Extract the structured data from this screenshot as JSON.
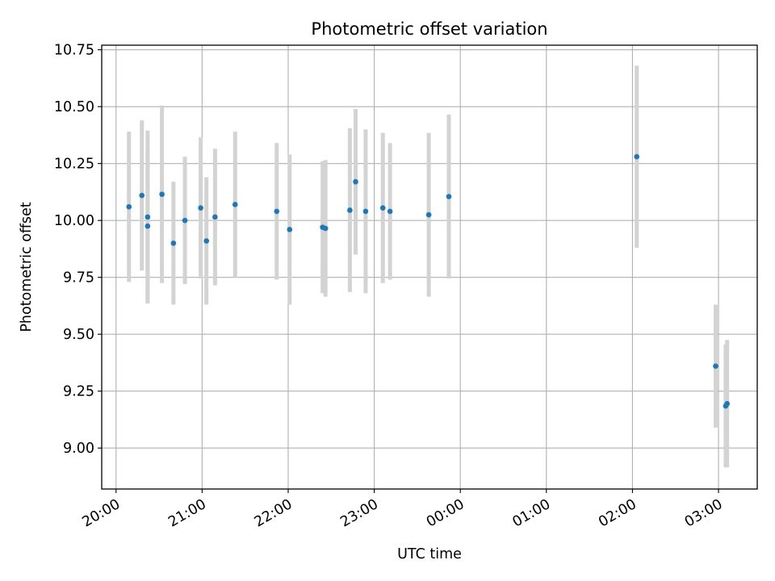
{
  "chart_data": {
    "type": "scatter",
    "title": "Photometric offset variation",
    "xlabel": "UTC time",
    "ylabel": "Photometric offset",
    "x_axis": "time",
    "xlim": [
      "2000-01-01 19:50",
      "2000-01-02 03:27"
    ],
    "ylim": [
      8.82,
      10.77
    ],
    "xticks": [
      {
        "time": "2000-01-01 20:00",
        "label": "20:00"
      },
      {
        "time": "2000-01-01 21:00",
        "label": "21:00"
      },
      {
        "time": "2000-01-01 22:00",
        "label": "22:00"
      },
      {
        "time": "2000-01-01 23:00",
        "label": "23:00"
      },
      {
        "time": "2000-01-02 00:00",
        "label": "00:00"
      },
      {
        "time": "2000-01-02 01:00",
        "label": "01:00"
      },
      {
        "time": "2000-01-02 02:00",
        "label": "02:00"
      },
      {
        "time": "2000-01-02 03:00",
        "label": "03:00"
      }
    ],
    "yticks": [
      9.0,
      9.25,
      9.5,
      9.75,
      10.0,
      10.25,
      10.5,
      10.75
    ],
    "ytick_labels": [
      "9.00",
      "9.25",
      "9.50",
      "9.75",
      "10.00",
      "10.25",
      "10.50",
      "10.75"
    ],
    "grid": true,
    "marker_color": "#1f77b4",
    "errorbar_color": "#d3d3d3",
    "points": [
      {
        "t": "2000-01-01 20:09",
        "y": 10.06,
        "err": 0.33
      },
      {
        "t": "2000-01-01 20:18",
        "y": 10.11,
        "err": 0.33
      },
      {
        "t": "2000-01-01 20:22",
        "y": 9.975,
        "err": 0.34
      },
      {
        "t": "2000-01-01 20:22",
        "y": 10.015,
        "err": 0.38
      },
      {
        "t": "2000-01-01 20:32",
        "y": 10.115,
        "err": 0.39
      },
      {
        "t": "2000-01-01 20:40",
        "y": 9.9,
        "err": 0.27
      },
      {
        "t": "2000-01-01 20:48",
        "y": 10.0,
        "err": 0.28
      },
      {
        "t": "2000-01-01 20:59",
        "y": 10.055,
        "err": 0.31
      },
      {
        "t": "2000-01-01 21:03",
        "y": 9.91,
        "err": 0.28
      },
      {
        "t": "2000-01-01 21:09",
        "y": 10.015,
        "err": 0.3
      },
      {
        "t": "2000-01-01 21:23",
        "y": 10.07,
        "err": 0.32
      },
      {
        "t": "2000-01-01 21:52",
        "y": 10.04,
        "err": 0.3
      },
      {
        "t": "2000-01-01 22:01",
        "y": 9.96,
        "err": 0.33
      },
      {
        "t": "2000-01-01 22:24",
        "y": 9.97,
        "err": 0.29
      },
      {
        "t": "2000-01-01 22:26",
        "y": 9.965,
        "err": 0.3
      },
      {
        "t": "2000-01-01 22:43",
        "y": 10.045,
        "err": 0.36
      },
      {
        "t": "2000-01-01 22:47",
        "y": 10.17,
        "err": 0.32
      },
      {
        "t": "2000-01-01 22:54",
        "y": 10.04,
        "err": 0.36
      },
      {
        "t": "2000-01-01 23:06",
        "y": 10.055,
        "err": 0.33
      },
      {
        "t": "2000-01-01 23:11",
        "y": 10.04,
        "err": 0.3
      },
      {
        "t": "2000-01-01 23:38",
        "y": 10.025,
        "err": 0.36
      },
      {
        "t": "2000-01-01 23:52",
        "y": 10.105,
        "err": 0.36
      },
      {
        "t": "2000-01-02 02:03",
        "y": 10.28,
        "err": 0.4
      },
      {
        "t": "2000-01-02 02:58",
        "y": 9.36,
        "err": 0.27
      },
      {
        "t": "2000-01-02 03:05",
        "y": 9.185,
        "err": 0.27
      },
      {
        "t": "2000-01-02 03:06",
        "y": 9.195,
        "err": 0.28
      }
    ]
  }
}
